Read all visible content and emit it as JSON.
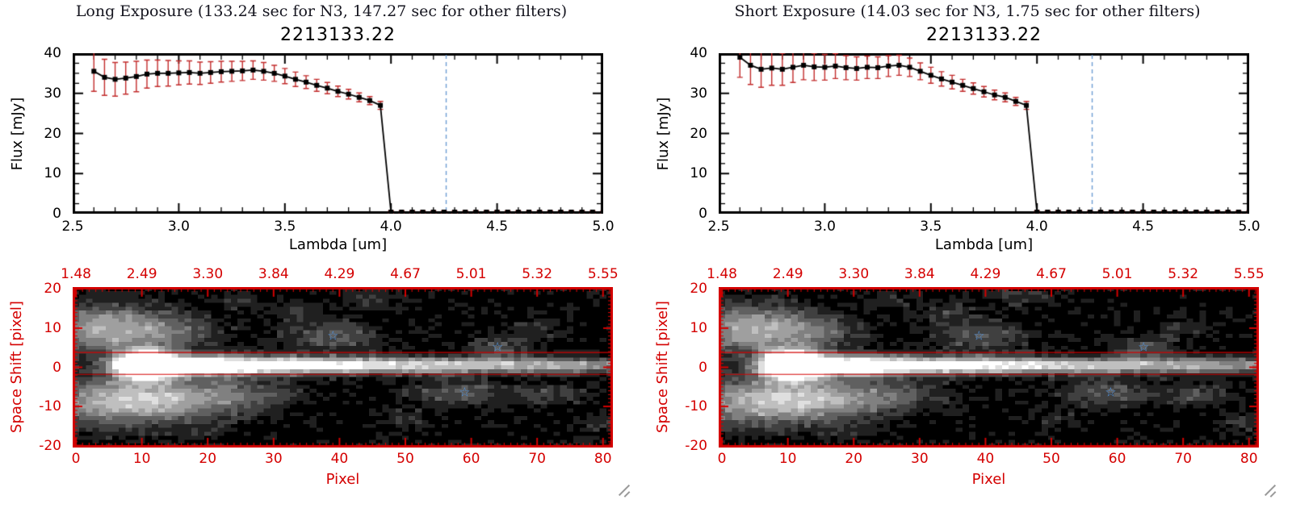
{
  "page": {
    "background": "#ffffff"
  },
  "icons": {
    "star": "☆"
  },
  "panels": [
    {
      "title": "Long Exposure (133.24 sec for N3, 147.27 sec for other filters)",
      "object_id": "2213133.22",
      "spectrum": {
        "xlabel": "Lambda [um]",
        "ylabel": "Flux [mJy]"
      },
      "map": {
        "xlabel": "Pixel",
        "ylabel": "Space Shift [pixel]"
      }
    },
    {
      "title": "Short Exposure (14.03 sec for N3, 1.75 sec for other filters)",
      "object_id": "2213133.22",
      "spectrum": {
        "xlabel": "Lambda [um]",
        "ylabel": "Flux [mJy]"
      },
      "map": {
        "xlabel": "Pixel",
        "ylabel": "Space Shift [pixel]"
      }
    }
  ],
  "chart_data": [
    {
      "type": "line",
      "exposure": "long",
      "title": "2213133.22",
      "xlabel": "Lambda [um]",
      "ylabel": "Flux [mJy]",
      "xlim": [
        2.5,
        5.0
      ],
      "ylim": [
        0,
        40
      ],
      "xticks": [
        2.5,
        3.0,
        3.5,
        4.0,
        4.5,
        5.0
      ],
      "xtick_labels": [
        "2.5",
        "3.0",
        "3.5",
        "4.0",
        "4.5",
        "5.0"
      ],
      "xminor": 0.1,
      "yticks": [
        0,
        10,
        20,
        30,
        40
      ],
      "ytick_labels": [
        "0",
        "10",
        "20",
        "30",
        "40"
      ],
      "yminor": 2.5,
      "x": [
        2.6,
        2.65,
        2.7,
        2.75,
        2.8,
        2.85,
        2.9,
        2.95,
        3.0,
        3.05,
        3.1,
        3.15,
        3.2,
        3.25,
        3.3,
        3.35,
        3.4,
        3.45,
        3.5,
        3.55,
        3.6,
        3.65,
        3.7,
        3.75,
        3.8,
        3.85,
        3.9,
        3.95,
        4.0,
        4.05,
        4.1,
        4.15,
        4.2,
        4.25,
        4.3,
        4.35,
        4.4,
        4.45,
        4.5,
        4.55,
        4.6,
        4.65,
        4.7,
        4.75,
        4.8,
        4.85,
        4.9,
        4.95,
        5.0
      ],
      "y": [
        35.5,
        34.0,
        33.5,
        33.8,
        34.2,
        34.8,
        35.0,
        35.0,
        35.1,
        35.2,
        35.0,
        35.2,
        35.4,
        35.5,
        35.6,
        35.8,
        35.5,
        35.0,
        34.3,
        33.5,
        32.8,
        32.0,
        31.3,
        30.5,
        29.8,
        29.0,
        28.2,
        27.0,
        0.4,
        0.4,
        0.4,
        0.4,
        0.4,
        0.4,
        0.4,
        0.4,
        0.4,
        0.4,
        0.4,
        0.4,
        0.4,
        0.4,
        0.4,
        0.4,
        0.4,
        0.4,
        0.4,
        0.4,
        0.4
      ],
      "yerr": [
        5.0,
        4.5,
        4.2,
        4.0,
        3.8,
        3.5,
        3.3,
        3.2,
        3.0,
        2.9,
        2.8,
        2.7,
        2.6,
        2.5,
        2.4,
        2.3,
        2.2,
        2.0,
        1.9,
        1.8,
        1.6,
        1.5,
        1.4,
        1.3,
        1.2,
        1.1,
        1.0,
        1.0,
        0.3,
        0.3,
        0.3,
        0.3,
        0.3,
        0.3,
        0.3,
        0.3,
        0.3,
        0.3,
        0.3,
        0.3,
        0.3,
        0.3,
        0.3,
        0.3,
        0.3,
        0.3,
        0.3,
        0.3,
        0.3
      ],
      "cutoff_line_x": 4.26,
      "colors": {
        "line": "#000000",
        "marker": "#000000",
        "error": "#c22b2b",
        "cutoff": "#6b9bd2"
      }
    },
    {
      "type": "line",
      "exposure": "short",
      "title": "2213133.22",
      "xlabel": "Lambda [um]",
      "ylabel": "Flux [mJy]",
      "xlim": [
        2.5,
        5.0
      ],
      "ylim": [
        0,
        40
      ],
      "xticks": [
        2.5,
        3.0,
        3.5,
        4.0,
        4.5,
        5.0
      ],
      "xtick_labels": [
        "2.5",
        "3.0",
        "3.5",
        "4.0",
        "4.5",
        "5.0"
      ],
      "xminor": 0.1,
      "yticks": [
        0,
        10,
        20,
        30,
        40
      ],
      "ytick_labels": [
        "0",
        "10",
        "20",
        "30",
        "40"
      ],
      "yminor": 2.5,
      "x": [
        2.6,
        2.65,
        2.7,
        2.75,
        2.8,
        2.85,
        2.9,
        2.95,
        3.0,
        3.05,
        3.1,
        3.15,
        3.2,
        3.25,
        3.3,
        3.35,
        3.4,
        3.45,
        3.5,
        3.55,
        3.6,
        3.65,
        3.7,
        3.75,
        3.8,
        3.85,
        3.9,
        3.95,
        4.0,
        4.05,
        4.1,
        4.15,
        4.2,
        4.25,
        4.3,
        4.35,
        4.4,
        4.45,
        4.5,
        4.55,
        4.6,
        4.65,
        4.7,
        4.75,
        4.8,
        4.85,
        4.9,
        4.95,
        5.0
      ],
      "y": [
        39.0,
        37.0,
        36.0,
        36.3,
        36.0,
        36.5,
        37.0,
        36.6,
        36.5,
        36.8,
        36.4,
        36.2,
        36.5,
        36.4,
        36.8,
        37.0,
        36.5,
        35.5,
        34.5,
        33.6,
        32.8,
        32.0,
        31.2,
        30.4,
        29.6,
        29.0,
        28.0,
        27.0,
        0.4,
        0.4,
        0.4,
        0.4,
        0.4,
        0.4,
        0.4,
        0.4,
        0.4,
        0.4,
        0.4,
        0.4,
        0.4,
        0.4,
        0.4,
        0.4,
        0.4,
        0.4,
        0.4,
        0.4,
        0.4
      ],
      "yerr": [
        5.0,
        4.8,
        4.5,
        4.3,
        4.0,
        3.8,
        3.6,
        3.4,
        3.2,
        3.1,
        3.0,
        2.9,
        2.8,
        2.7,
        2.6,
        2.5,
        2.3,
        2.1,
        2.0,
        1.8,
        1.7,
        1.5,
        1.4,
        1.3,
        1.2,
        1.1,
        1.0,
        1.0,
        0.3,
        0.3,
        0.3,
        0.3,
        0.3,
        0.3,
        0.3,
        0.3,
        0.3,
        0.3,
        0.3,
        0.3,
        0.3,
        0.3,
        0.3,
        0.3,
        0.3,
        0.3,
        0.3,
        0.3,
        0.3
      ],
      "cutoff_line_x": 4.26,
      "colors": {
        "line": "#000000",
        "marker": "#000000",
        "error": "#c22b2b",
        "cutoff": "#6b9bd2"
      }
    },
    {
      "type": "heatmap",
      "exposure": "long",
      "xlabel": "Pixel",
      "ylabel": "Space Shift [pixel]",
      "xlim": [
        0,
        82
      ],
      "ylim": [
        -20,
        20
      ],
      "xticks": [
        0,
        10,
        20,
        30,
        40,
        50,
        60,
        70,
        80
      ],
      "xtick_labels": [
        "0",
        "10",
        "20",
        "30",
        "40",
        "50",
        "60",
        "70",
        "80"
      ],
      "yticks": [
        20,
        10,
        0,
        -10,
        -20
      ],
      "ytick_labels": [
        "20",
        "10",
        "0",
        "-10",
        "-20"
      ],
      "top_axis_labels": [
        "1.48",
        "2.49",
        "3.30",
        "3.84",
        "4.29",
        "4.67",
        "5.01",
        "5.32",
        "5.55"
      ],
      "axis_color": "#d40000",
      "aperture_lines_y": [
        3.8,
        -1.8
      ],
      "stars": [
        {
          "x": 39,
          "y": 8
        },
        {
          "x": 64,
          "y": 5
        },
        {
          "x": 59,
          "y": -6.5
        }
      ],
      "star_color": "#4f93e0",
      "image_grid": {
        "width": 82,
        "height": 41,
        "levels": 9,
        "noise": 0.16,
        "blobs": [
          {
            "x": 10.5,
            "y": 0.5,
            "sx": 3.0,
            "sy": 2.4,
            "a": 1.8
          },
          {
            "x": 19,
            "y": 0.5,
            "sx": 6,
            "sy": 1.8,
            "a": 0.8
          },
          {
            "x": 30,
            "y": 0.5,
            "sx": 10,
            "sy": 1.6,
            "a": 0.62
          },
          {
            "x": 45,
            "y": 0.5,
            "sx": 12,
            "sy": 1.5,
            "a": 0.5
          },
          {
            "x": 62,
            "y": 0.5,
            "sx": 12,
            "sy": 1.4,
            "a": 0.42
          },
          {
            "x": 78,
            "y": 0.5,
            "sx": 9,
            "sy": 1.4,
            "a": 0.36
          },
          {
            "x": 3,
            "y": 10,
            "sx": 7,
            "sy": 4.5,
            "a": 0.5
          },
          {
            "x": 13,
            "y": 9,
            "sx": 6,
            "sy": 3.5,
            "a": 0.32
          },
          {
            "x": 5,
            "y": -9,
            "sx": 8,
            "sy": 4.5,
            "a": 0.55
          },
          {
            "x": 16,
            "y": -8,
            "sx": 7,
            "sy": 3.5,
            "a": 0.42
          },
          {
            "x": 27,
            "y": -7,
            "sx": 6,
            "sy": 3,
            "a": 0.22
          },
          {
            "x": 39,
            "y": 8,
            "sx": 5,
            "sy": 2.8,
            "a": 0.3
          },
          {
            "x": 34,
            "y": 14,
            "sx": 3,
            "sy": 2,
            "a": 0.16
          },
          {
            "x": 45,
            "y": 18,
            "sx": 4,
            "sy": 2,
            "a": 0.15
          },
          {
            "x": 25,
            "y": 17,
            "sx": 3,
            "sy": 1.8,
            "a": 0.14
          },
          {
            "x": 58,
            "y": -6.5,
            "sx": 5,
            "sy": 2.5,
            "a": 0.3
          },
          {
            "x": 64,
            "y": 5,
            "sx": 3.5,
            "sy": 2,
            "a": 0.28
          },
          {
            "x": 72,
            "y": -7,
            "sx": 4,
            "sy": 2,
            "a": 0.22
          },
          {
            "x": 70,
            "y": 10,
            "sx": 3,
            "sy": 1.8,
            "a": 0.15
          },
          {
            "x": 79,
            "y": -14,
            "sx": 3,
            "sy": 2,
            "a": 0.14
          },
          {
            "x": 50,
            "y": -13,
            "sx": 3,
            "sy": 1.8,
            "a": 0.12
          },
          {
            "x": 20,
            "y": -16,
            "sx": 3,
            "sy": 2,
            "a": 0.12
          }
        ]
      }
    },
    {
      "type": "heatmap",
      "exposure": "short",
      "xlabel": "Pixel",
      "ylabel": "Space Shift [pixel]",
      "xlim": [
        0,
        82
      ],
      "ylim": [
        -20,
        20
      ],
      "xticks": [
        0,
        10,
        20,
        30,
        40,
        50,
        60,
        70,
        80
      ],
      "xtick_labels": [
        "0",
        "10",
        "20",
        "30",
        "40",
        "50",
        "60",
        "70",
        "80"
      ],
      "yticks": [
        20,
        10,
        0,
        -10,
        -20
      ],
      "ytick_labels": [
        "20",
        "10",
        "0",
        "-10",
        "-20"
      ],
      "top_axis_labels": [
        "1.48",
        "2.49",
        "3.30",
        "3.84",
        "4.29",
        "4.67",
        "5.01",
        "5.32",
        "5.55"
      ],
      "axis_color": "#d40000",
      "aperture_lines_y": [
        3.8,
        -1.8
      ],
      "stars": [
        {
          "x": 39,
          "y": 8
        },
        {
          "x": 64,
          "y": 5
        },
        {
          "x": 59,
          "y": -6.5
        }
      ],
      "star_color": "#4f93e0",
      "image_grid": {
        "width": 82,
        "height": 41,
        "levels": 9,
        "noise": 0.16,
        "blobs": [
          {
            "x": 10.5,
            "y": 0.5,
            "sx": 3.0,
            "sy": 2.4,
            "a": 1.8
          },
          {
            "x": 19,
            "y": 0.5,
            "sx": 6,
            "sy": 1.8,
            "a": 0.8
          },
          {
            "x": 30,
            "y": 0.5,
            "sx": 10,
            "sy": 1.6,
            "a": 0.62
          },
          {
            "x": 45,
            "y": 0.5,
            "sx": 12,
            "sy": 1.5,
            "a": 0.5
          },
          {
            "x": 62,
            "y": 0.5,
            "sx": 12,
            "sy": 1.4,
            "a": 0.42
          },
          {
            "x": 78,
            "y": 0.5,
            "sx": 9,
            "sy": 1.4,
            "a": 0.36
          },
          {
            "x": 3,
            "y": 10,
            "sx": 7,
            "sy": 4.5,
            "a": 0.5
          },
          {
            "x": 13,
            "y": 9,
            "sx": 6,
            "sy": 3.5,
            "a": 0.32
          },
          {
            "x": 5,
            "y": -9,
            "sx": 8,
            "sy": 4.5,
            "a": 0.55
          },
          {
            "x": 16,
            "y": -8,
            "sx": 7,
            "sy": 3.5,
            "a": 0.42
          },
          {
            "x": 27,
            "y": -7,
            "sx": 6,
            "sy": 3,
            "a": 0.22
          },
          {
            "x": 39,
            "y": 8,
            "sx": 5,
            "sy": 2.8,
            "a": 0.3
          },
          {
            "x": 34,
            "y": 14,
            "sx": 3,
            "sy": 2,
            "a": 0.16
          },
          {
            "x": 45,
            "y": 18,
            "sx": 4,
            "sy": 2,
            "a": 0.15
          },
          {
            "x": 25,
            "y": 17,
            "sx": 3,
            "sy": 1.8,
            "a": 0.14
          },
          {
            "x": 58,
            "y": -6.5,
            "sx": 5,
            "sy": 2.5,
            "a": 0.3
          },
          {
            "x": 64,
            "y": 5,
            "sx": 3.5,
            "sy": 2,
            "a": 0.28
          },
          {
            "x": 72,
            "y": -7,
            "sx": 4,
            "sy": 2,
            "a": 0.22
          },
          {
            "x": 70,
            "y": 10,
            "sx": 3,
            "sy": 1.8,
            "a": 0.15
          },
          {
            "x": 79,
            "y": -14,
            "sx": 3,
            "sy": 2,
            "a": 0.14
          },
          {
            "x": 50,
            "y": -13,
            "sx": 3,
            "sy": 1.8,
            "a": 0.12
          },
          {
            "x": 20,
            "y": -16,
            "sx": 3,
            "sy": 2,
            "a": 0.12
          }
        ]
      }
    }
  ]
}
